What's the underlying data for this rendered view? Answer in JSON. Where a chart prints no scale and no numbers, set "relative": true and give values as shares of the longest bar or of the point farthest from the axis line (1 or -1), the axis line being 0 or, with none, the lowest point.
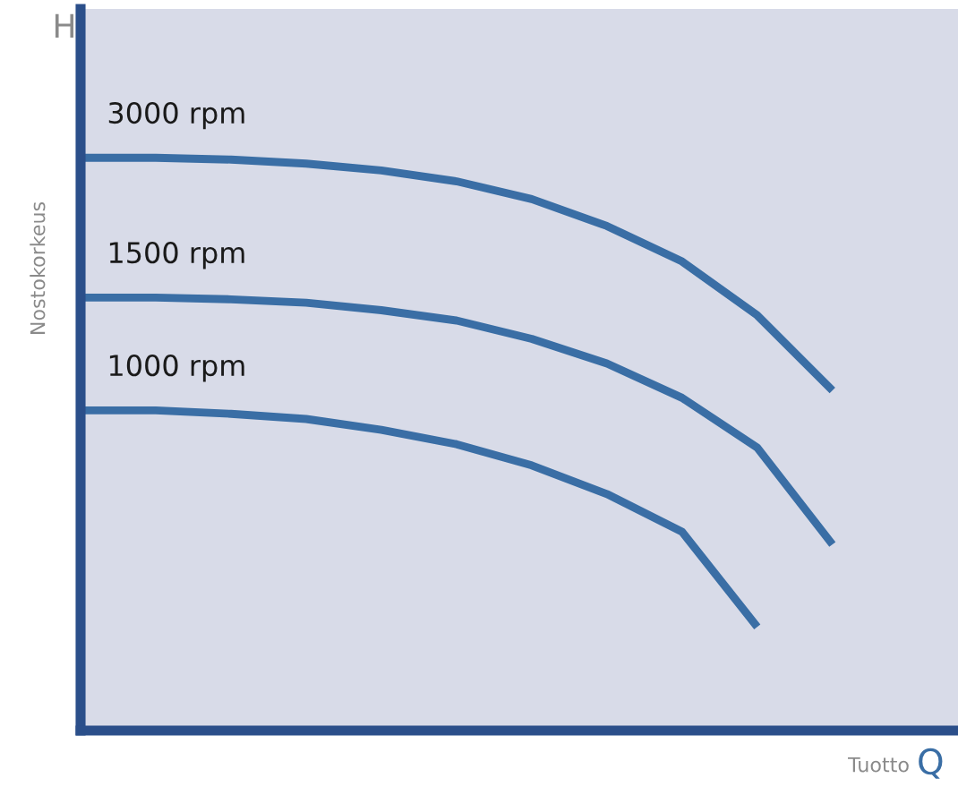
{
  "chart_data": {
    "type": "line",
    "relative": true,
    "xlabel": "Tuotto",
    "ylabel": "Nostokorkeus",
    "annotations": [
      "H",
      "Q"
    ],
    "categories": [
      null,
      null,
      null,
      null,
      null,
      null,
      null,
      null,
      null,
      null,
      null
    ],
    "series": [
      {
        "name": "3000 rpm",
        "color": "#3a6ea5",
        "values": [
          1.0,
          1.0,
          0.997,
          0.99,
          0.978,
          0.959,
          0.928,
          0.881,
          0.819,
          0.725,
          0.594
        ]
      },
      {
        "name": "1500 rpm",
        "color": "#3a6ea5",
        "values": [
          0.756,
          0.756,
          0.753,
          0.747,
          0.734,
          0.716,
          0.684,
          0.641,
          0.581,
          0.494,
          0.325
        ]
      },
      {
        "name": "1000 rpm",
        "color": "#3a6ea5",
        "values": [
          0.559,
          0.559,
          0.553,
          0.544,
          0.525,
          0.5,
          0.463,
          0.413,
          0.347,
          0.181,
          null
        ]
      }
    ]
  }
}
